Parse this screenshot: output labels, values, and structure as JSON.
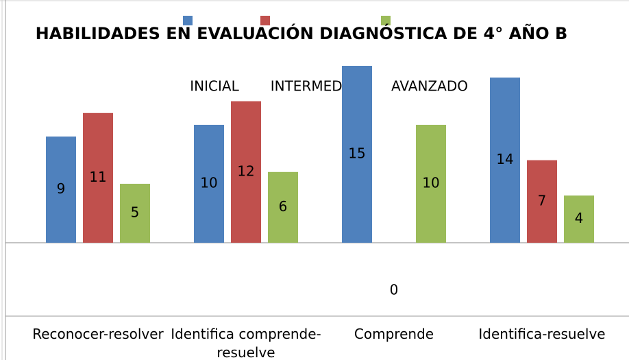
{
  "chart_data": {
    "type": "bar",
    "title": "HABILIDADES EN EVALUACIÓN DIAGNÓSTICA DE 4° AÑO B",
    "categories": [
      "Reconocer-resolver",
      "Identifica comprende-resuelve",
      "Comprende",
      "Identifica-resuelve"
    ],
    "series": [
      {
        "name": "INICIAL",
        "color": "#4f81bd",
        "values": [
          9,
          10,
          15,
          14
        ]
      },
      {
        "name": "INTERMEDIO",
        "color": "#c0504d",
        "values": [
          11,
          12,
          0,
          7
        ]
      },
      {
        "name": "AVANZADO",
        "color": "#9bbb59",
        "values": [
          5,
          6,
          10,
          4
        ]
      }
    ],
    "ylim": [
      0,
      15
    ]
  }
}
